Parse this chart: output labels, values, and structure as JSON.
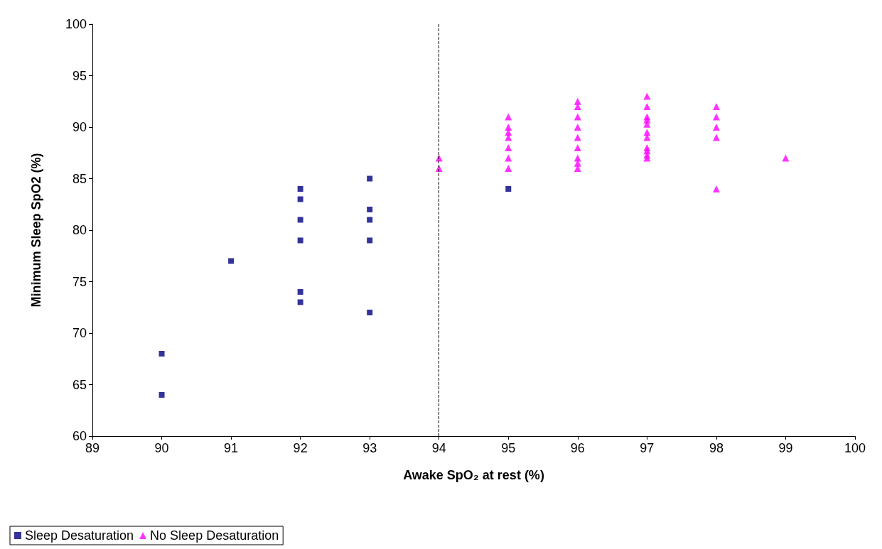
{
  "chart_data": {
    "type": "scatter",
    "xlabel": "Awake SpO₂ at rest (%)",
    "ylabel": "Minimum Sleep SpO2 (%)",
    "xlim": [
      89,
      100
    ],
    "xticks": [
      89,
      90,
      91,
      92,
      93,
      94,
      95,
      96,
      97,
      98,
      99,
      100
    ],
    "ylim": [
      60,
      100
    ],
    "yticks": [
      60,
      65,
      70,
      75,
      80,
      85,
      90,
      95,
      100
    ],
    "grid": false,
    "legend": "bottom left",
    "ref_lines": [
      {
        "axis": "x",
        "value": 94,
        "line_style": "dashed",
        "color": "#000000"
      }
    ],
    "series": [
      {
        "name": "Sleep Desaturation",
        "color": "#000080",
        "marker": "square",
        "x": [
          90,
          90,
          91,
          92,
          92,
          92,
          92,
          92,
          92,
          93,
          93,
          93,
          93,
          93,
          95
        ],
        "values": [
          68,
          64,
          77,
          84,
          83,
          81,
          79,
          74,
          73,
          85,
          82,
          81,
          79,
          72,
          84
        ]
      },
      {
        "name": "No Sleep Desaturation",
        "color": "#ff00ff",
        "marker": "triangle",
        "x": [
          94,
          94,
          95,
          95,
          95,
          95,
          95,
          95,
          95,
          96,
          96,
          96,
          96,
          96,
          96,
          96,
          96,
          96,
          97,
          97,
          97,
          97,
          97,
          97,
          97,
          97,
          97,
          97,
          97,
          98,
          98,
          98,
          98,
          98,
          99
        ],
        "values": [
          87,
          86,
          91,
          90,
          89.5,
          89,
          88,
          87,
          86,
          92.5,
          92,
          91,
          90,
          89,
          88,
          87,
          86.5,
          86,
          93,
          92,
          91,
          90.7,
          90.3,
          89.5,
          89,
          88,
          87.7,
          87.3,
          87,
          92,
          91,
          90,
          89,
          84,
          87
        ]
      }
    ]
  }
}
